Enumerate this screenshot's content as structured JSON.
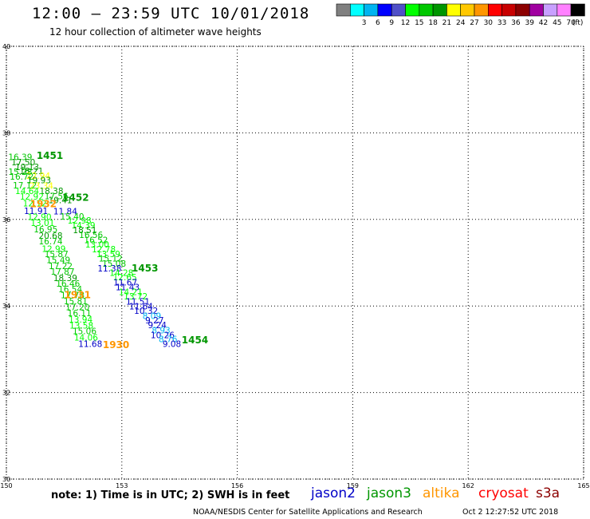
{
  "header": {
    "title": "12:00 — 23:59 UTC 10/01/2018",
    "subtitle": "12 hour collection of altimeter wave heights"
  },
  "color_scale": {
    "unit": "(ft)",
    "bins": [
      {
        "color": "#808080",
        "label": ""
      },
      {
        "color": "#00ffff",
        "label": "3"
      },
      {
        "color": "#00b4f0",
        "label": "6"
      },
      {
        "color": "#0000ff",
        "label": "9"
      },
      {
        "color": "#5050c8",
        "label": "12"
      },
      {
        "color": "#00ff00",
        "label": "15"
      },
      {
        "color": "#00c800",
        "label": "18"
      },
      {
        "color": "#009600",
        "label": "21"
      },
      {
        "color": "#ffff00",
        "label": "24"
      },
      {
        "color": "#ffc800",
        "label": "27"
      },
      {
        "color": "#ff9600",
        "label": "30"
      },
      {
        "color": "#ff0000",
        "label": "33"
      },
      {
        "color": "#c80000",
        "label": "36"
      },
      {
        "color": "#8c0000",
        "label": "39"
      },
      {
        "color": "#a000a0",
        "label": "42"
      },
      {
        "color": "#c8a0ff",
        "label": "45"
      },
      {
        "color": "#ff80ff",
        "label": "70"
      },
      {
        "color": "#000000",
        "label": ""
      }
    ]
  },
  "footer": {
    "note": "note: 1) Time is in UTC; 2) SWH is in feet",
    "credit": "NOAA/NESDIS Center for Satellite Applications and Research",
    "timestamp": "Oct  2 12:27:52 UTC 2018",
    "satellites": [
      {
        "name": "jason2",
        "color": "#0000c8"
      },
      {
        "name": "jason3",
        "color": "#009600"
      },
      {
        "name": "altika",
        "color": "#ff9600"
      },
      {
        "name": "cryosat",
        "color": "#ff0000"
      },
      {
        "name": "s3a",
        "color": "#8c0000"
      }
    ]
  },
  "chart_data": {
    "type": "scatter",
    "xlim": [
      150,
      165
    ],
    "ylim": [
      30,
      40
    ],
    "x_ticks": [
      "150",
      "153",
      "156",
      "159",
      "162",
      "165"
    ],
    "y_ticks": [
      "30",
      "32",
      "34",
      "36",
      "38",
      "40"
    ],
    "grid": true,
    "labels": [
      {
        "x": 150.36,
        "y": 37.37,
        "text": "16.39",
        "color": "#00c800"
      },
      {
        "x": 150.44,
        "y": 37.25,
        "text": "17.50",
        "color": "#009600"
      },
      {
        "x": 150.54,
        "y": 37.14,
        "text": "19.13",
        "color": "#009600"
      },
      {
        "x": 150.36,
        "y": 37.03,
        "text": "15.28",
        "color": "#00c800"
      },
      {
        "x": 150.65,
        "y": 37.05,
        "text": "18.21",
        "color": "#009600"
      },
      {
        "x": 150.83,
        "y": 36.94,
        "text": "22.94",
        "color": "#ffff00"
      },
      {
        "x": 150.4,
        "y": 36.92,
        "text": "16.72",
        "color": "#00c800"
      },
      {
        "x": 150.85,
        "y": 36.84,
        "text": "19.93",
        "color": "#009600"
      },
      {
        "x": 150.48,
        "y": 36.72,
        "text": "17.12",
        "color": "#00c800"
      },
      {
        "x": 150.91,
        "y": 36.71,
        "text": "23.34",
        "color": "#ffff00"
      },
      {
        "x": 150.54,
        "y": 36.59,
        "text": "14.64",
        "color": "#00ff00"
      },
      {
        "x": 151.17,
        "y": 36.59,
        "text": "18.38",
        "color": "#009600"
      },
      {
        "x": 150.66,
        "y": 36.46,
        "text": "12.92",
        "color": "#00ff00"
      },
      {
        "x": 151.3,
        "y": 36.47,
        "text": "17.56",
        "color": "#00c800"
      },
      {
        "x": 151.4,
        "y": 36.37,
        "text": "19.41",
        "color": "#009600"
      },
      {
        "x": 150.74,
        "y": 36.3,
        "text": "12.12",
        "color": "#00ff00"
      },
      {
        "x": 150.77,
        "y": 36.13,
        "text": "11.91",
        "color": "#0000c8"
      },
      {
        "x": 151.53,
        "y": 36.12,
        "text": "11.84",
        "color": "#0000c8"
      },
      {
        "x": 150.86,
        "y": 35.99,
        "text": "12.90",
        "color": "#00ff00"
      },
      {
        "x": 151.71,
        "y": 36.0,
        "text": "15.40",
        "color": "#00c800"
      },
      {
        "x": 151.9,
        "y": 35.9,
        "text": "12.98",
        "color": "#00ff00"
      },
      {
        "x": 150.94,
        "y": 35.85,
        "text": "13.01",
        "color": "#00ff00"
      },
      {
        "x": 152.0,
        "y": 35.79,
        "text": "14.39",
        "color": "#00ff00"
      },
      {
        "x": 151.02,
        "y": 35.7,
        "text": "16.95",
        "color": "#00c800"
      },
      {
        "x": 152.04,
        "y": 35.68,
        "text": "18.51",
        "color": "#009600"
      },
      {
        "x": 152.2,
        "y": 35.57,
        "text": "16.56",
        "color": "#00c800"
      },
      {
        "x": 151.15,
        "y": 35.55,
        "text": "20.68",
        "color": "#009600"
      },
      {
        "x": 152.33,
        "y": 35.45,
        "text": "16.52",
        "color": "#00c800"
      },
      {
        "x": 151.15,
        "y": 35.42,
        "text": "16.74",
        "color": "#00c800"
      },
      {
        "x": 152.36,
        "y": 35.35,
        "text": "13.00",
        "color": "#00ff00"
      },
      {
        "x": 151.23,
        "y": 35.25,
        "text": "12.99",
        "color": "#00ff00"
      },
      {
        "x": 152.53,
        "y": 35.24,
        "text": "12.78",
        "color": "#00ff00"
      },
      {
        "x": 151.3,
        "y": 35.13,
        "text": "15.87",
        "color": "#00c800"
      },
      {
        "x": 152.65,
        "y": 35.13,
        "text": "13.59",
        "color": "#00ff00"
      },
      {
        "x": 152.71,
        "y": 35.03,
        "text": "15.12",
        "color": "#00c800"
      },
      {
        "x": 151.35,
        "y": 34.99,
        "text": "15.49",
        "color": "#00c800"
      },
      {
        "x": 152.8,
        "y": 34.91,
        "text": "15.08",
        "color": "#00c800"
      },
      {
        "x": 151.41,
        "y": 34.85,
        "text": "17.22",
        "color": "#00c800"
      },
      {
        "x": 152.68,
        "y": 34.8,
        "text": "11.38",
        "color": "#0000c8"
      },
      {
        "x": 151.46,
        "y": 34.72,
        "text": "17.87",
        "color": "#00c800"
      },
      {
        "x": 152.99,
        "y": 34.7,
        "text": "14.28",
        "color": "#00ff00"
      },
      {
        "x": 151.53,
        "y": 34.58,
        "text": "18.39",
        "color": "#009600"
      },
      {
        "x": 153.08,
        "y": 34.59,
        "text": "12.65",
        "color": "#00ff00"
      },
      {
        "x": 151.6,
        "y": 34.45,
        "text": "16.46",
        "color": "#00c800"
      },
      {
        "x": 153.09,
        "y": 34.47,
        "text": "11.67",
        "color": "#0000c8"
      },
      {
        "x": 153.15,
        "y": 34.36,
        "text": "11.43",
        "color": "#0000c8"
      },
      {
        "x": 151.66,
        "y": 34.32,
        "text": "16.54",
        "color": "#00c800"
      },
      {
        "x": 153.23,
        "y": 34.25,
        "text": "14.21",
        "color": "#00ff00"
      },
      {
        "x": 151.72,
        "y": 34.18,
        "text": "17.78",
        "color": "#00c800"
      },
      {
        "x": 153.36,
        "y": 34.15,
        "text": "13.72",
        "color": "#00ff00"
      },
      {
        "x": 151.8,
        "y": 34.04,
        "text": "15.81",
        "color": "#00c800"
      },
      {
        "x": 153.42,
        "y": 34.03,
        "text": "11.51",
        "color": "#0000c8"
      },
      {
        "x": 153.5,
        "y": 33.92,
        "text": "11.64",
        "color": "#0000c8"
      },
      {
        "x": 151.85,
        "y": 33.9,
        "text": "17.20",
        "color": "#00c800"
      },
      {
        "x": 153.63,
        "y": 33.82,
        "text": "10.32",
        "color": "#0000c8"
      },
      {
        "x": 151.9,
        "y": 33.76,
        "text": "16.11",
        "color": "#00c800"
      },
      {
        "x": 153.78,
        "y": 33.7,
        "text": "8.09",
        "color": "#00b4f0"
      },
      {
        "x": 151.93,
        "y": 33.62,
        "text": "13.94",
        "color": "#00ff00"
      },
      {
        "x": 153.85,
        "y": 33.6,
        "text": "9.27",
        "color": "#0000c8"
      },
      {
        "x": 151.95,
        "y": 33.48,
        "text": "13.58",
        "color": "#00ff00"
      },
      {
        "x": 153.92,
        "y": 33.49,
        "text": "9.24",
        "color": "#0000c8"
      },
      {
        "x": 154.02,
        "y": 33.37,
        "text": "8.93",
        "color": "#00b4f0"
      },
      {
        "x": 152.03,
        "y": 33.35,
        "text": "15.06",
        "color": "#00c800"
      },
      {
        "x": 154.06,
        "y": 33.26,
        "text": "10.26",
        "color": "#0000c8"
      },
      {
        "x": 152.07,
        "y": 33.2,
        "text": "14.06",
        "color": "#00ff00"
      },
      {
        "x": 154.2,
        "y": 33.16,
        "text": "8.76",
        "color": "#00b4f0"
      },
      {
        "x": 152.18,
        "y": 33.05,
        "text": "11.68",
        "color": "#0000c8"
      },
      {
        "x": 154.3,
        "y": 33.05,
        "text": "9.08",
        "color": "#0000c8"
      }
    ],
    "pass_times": [
      {
        "x": 151.13,
        "y": 37.4,
        "text": "1451",
        "color": "#009600"
      },
      {
        "x": 151.8,
        "y": 36.43,
        "text": "1452",
        "color": "#009600"
      },
      {
        "x": 150.96,
        "y": 36.28,
        "text": "1932",
        "color": "#ff9600"
      },
      {
        "x": 153.6,
        "y": 34.8,
        "text": "1453",
        "color": "#009600"
      },
      {
        "x": 151.85,
        "y": 34.18,
        "text": "1931",
        "color": "#ff9600"
      },
      {
        "x": 154.9,
        "y": 33.14,
        "text": "1454",
        "color": "#009600"
      },
      {
        "x": 152.85,
        "y": 33.03,
        "text": "1930",
        "color": "#ff9600"
      }
    ]
  }
}
